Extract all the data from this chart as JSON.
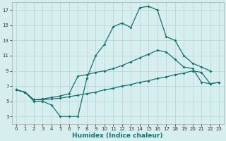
{
  "xlabel": "Humidex (Indice chaleur)",
  "background_color": "#d6eeee",
  "grid_color": "#b8d8d8",
  "line_color": "#1a7070",
  "xlim": [
    -0.5,
    23.5
  ],
  "ylim": [
    2.0,
    18.0
  ],
  "xticks": [
    0,
    1,
    2,
    3,
    4,
    5,
    6,
    7,
    8,
    9,
    10,
    11,
    12,
    13,
    14,
    15,
    16,
    17,
    18,
    19,
    20,
    21,
    22,
    23
  ],
  "yticks": [
    3,
    5,
    7,
    9,
    11,
    13,
    15,
    17
  ],
  "series1_x": [
    0,
    1,
    2,
    3,
    4,
    5,
    6,
    7,
    8,
    9,
    10,
    11,
    12,
    13,
    14,
    15,
    16,
    17,
    18,
    19,
    20,
    21,
    22
  ],
  "series1_y": [
    6.5,
    6.2,
    5.0,
    5.0,
    4.5,
    3.0,
    3.0,
    3.0,
    8.0,
    11.0,
    12.5,
    14.8,
    15.3,
    14.7,
    17.3,
    17.5,
    17.0,
    13.5,
    13.0,
    11.0,
    10.0,
    9.5,
    9.0
  ],
  "series2_x": [
    0,
    1,
    2,
    3,
    4,
    5,
    6,
    7,
    8,
    9,
    10,
    11,
    12,
    13,
    14,
    15,
    16,
    17,
    18,
    19,
    20,
    21,
    22,
    23
  ],
  "series2_y": [
    6.5,
    6.2,
    5.2,
    5.3,
    5.5,
    5.7,
    6.0,
    8.3,
    8.5,
    8.8,
    9.0,
    9.3,
    9.7,
    10.2,
    10.7,
    11.2,
    11.7,
    11.5,
    10.5,
    9.5,
    9.3,
    7.5,
    7.3,
    7.5
  ],
  "series3_x": [
    0,
    1,
    2,
    3,
    4,
    5,
    6,
    7,
    8,
    9,
    10,
    11,
    12,
    13,
    14,
    15,
    16,
    17,
    18,
    19,
    20,
    21,
    22,
    23
  ],
  "series3_y": [
    6.5,
    6.2,
    5.2,
    5.2,
    5.3,
    5.4,
    5.6,
    5.8,
    6.0,
    6.2,
    6.5,
    6.7,
    7.0,
    7.2,
    7.5,
    7.7,
    8.0,
    8.2,
    8.5,
    8.7,
    9.0,
    8.8,
    7.3,
    7.5
  ]
}
